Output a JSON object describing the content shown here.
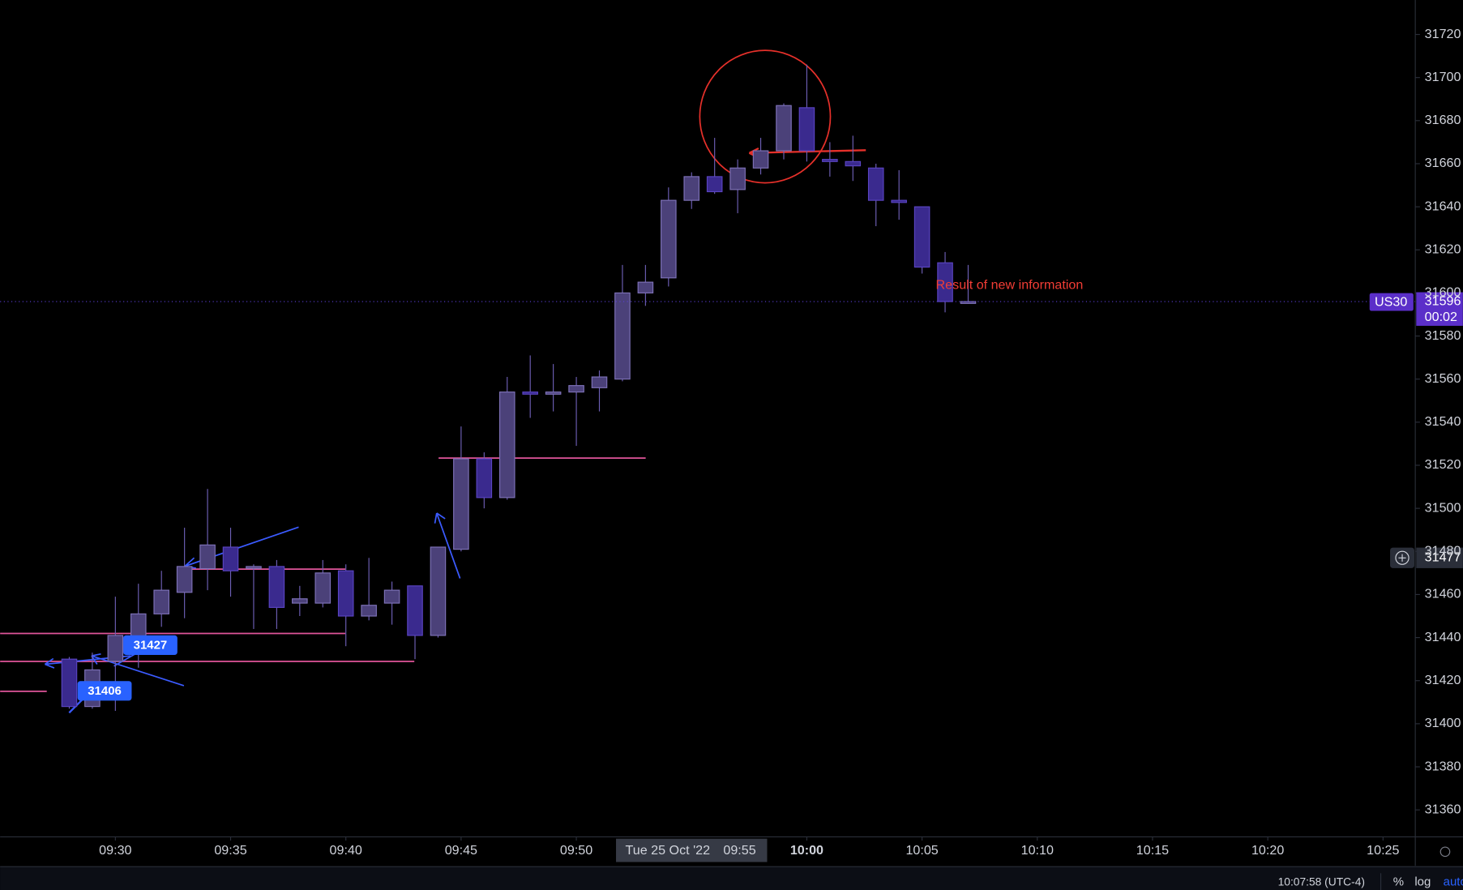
{
  "chart_data": {
    "type": "candlestick",
    "symbol": "US30",
    "categories": [
      null,
      null,
      null,
      null,
      null,
      null,
      null,
      null,
      null,
      null,
      null,
      null,
      null,
      null,
      null,
      null,
      null,
      null,
      null,
      null,
      null,
      null,
      null,
      null,
      null,
      null,
      null,
      null,
      null,
      null,
      null,
      null,
      null,
      null,
      null,
      null,
      null,
      null,
      null,
      null
    ],
    "open": [
      31430,
      31408,
      31429,
      31439,
      31451,
      31461,
      31472,
      31482,
      31473,
      31473,
      31456,
      31456,
      31471,
      31450,
      31456,
      31464,
      31441,
      31481,
      31523,
      31505,
      31554,
      31553,
      31554,
      31556,
      31560,
      31600,
      31607,
      31643,
      31654,
      31648,
      31658,
      31666,
      31686,
      31662,
      31661,
      31658,
      31643,
      31640,
      31614,
      31596
    ],
    "high": [
      31431,
      31433,
      31459,
      31465,
      31471,
      31491,
      31509,
      31491,
      31474,
      31476,
      31464,
      31476,
      31474,
      31477,
      31466,
      31464,
      31482,
      31538,
      31526,
      31561,
      31571,
      31567,
      31561,
      31564,
      31613,
      31613,
      31649,
      31656,
      31672,
      31662,
      31672,
      31688,
      31706,
      31670,
      31673,
      31660,
      31657,
      31640,
      31619,
      31613
    ],
    "low": [
      31407,
      31407,
      31406,
      31426,
      31445,
      31449,
      31462,
      31459,
      31444,
      31444,
      31450,
      31454,
      31436,
      31448,
      31446,
      31430,
      31440,
      31480,
      31500,
      31504,
      31542,
      31545,
      31529,
      31545,
      31559,
      31594,
      31603,
      31639,
      31646,
      31637,
      31655,
      31662,
      31661,
      31654,
      31652,
      31631,
      31634,
      31609,
      31591,
      31595
    ],
    "close": [
      31408,
      31425,
      31441,
      31451,
      31462,
      31473,
      31483,
      31471,
      31473,
      31454,
      31458,
      31470,
      31450,
      31455,
      31462,
      31441,
      31482,
      31523,
      31505,
      31554,
      31553,
      31554,
      31557,
      31561,
      31600,
      31605,
      31643,
      31654,
      31647,
      31658,
      31666,
      31687,
      31666,
      31661,
      31659,
      31643,
      31642,
      31612,
      31596,
      31596
    ],
    "up_color": "#4b4179",
    "down_color": "#3a2a8e",
    "ylim": [
      31347.5,
      31736
    ],
    "yticks": [
      31360,
      31380,
      31400,
      31420,
      31440,
      31460,
      31480,
      31500,
      31520,
      31540,
      31560,
      31580,
      31600,
      31620,
      31640,
      31660,
      31680,
      31700,
      31720
    ],
    "xlim": [
      -3,
      58.4
    ],
    "xticks": [
      {
        "value": 2,
        "label": "09:30"
      },
      {
        "value": 7,
        "label": "09:35"
      },
      {
        "value": 12,
        "label": "09:40"
      },
      {
        "value": 17,
        "label": "09:45"
      },
      {
        "value": 22,
        "label": "09:50"
      },
      {
        "value": 32,
        "label": "10:00"
      },
      {
        "value": 37,
        "label": "10:05"
      },
      {
        "value": 42,
        "label": "10:10"
      },
      {
        "value": 47,
        "label": "10:15"
      },
      {
        "value": 52,
        "label": "10:20"
      },
      {
        "value": 57,
        "label": "10:25"
      }
    ],
    "last_price": 31596,
    "countdown": "00:02",
    "crosshair": {
      "price": 31477,
      "index": 27,
      "date": "Tue 25 Oct '22",
      "time": "09:55"
    },
    "price_labels": [
      31427,
      31406
    ],
    "note": "Result of new information",
    "footer": {
      "clock": "10:07:58 (UTC-4)",
      "percent": "%",
      "log": "log",
      "auto": "auto"
    }
  }
}
